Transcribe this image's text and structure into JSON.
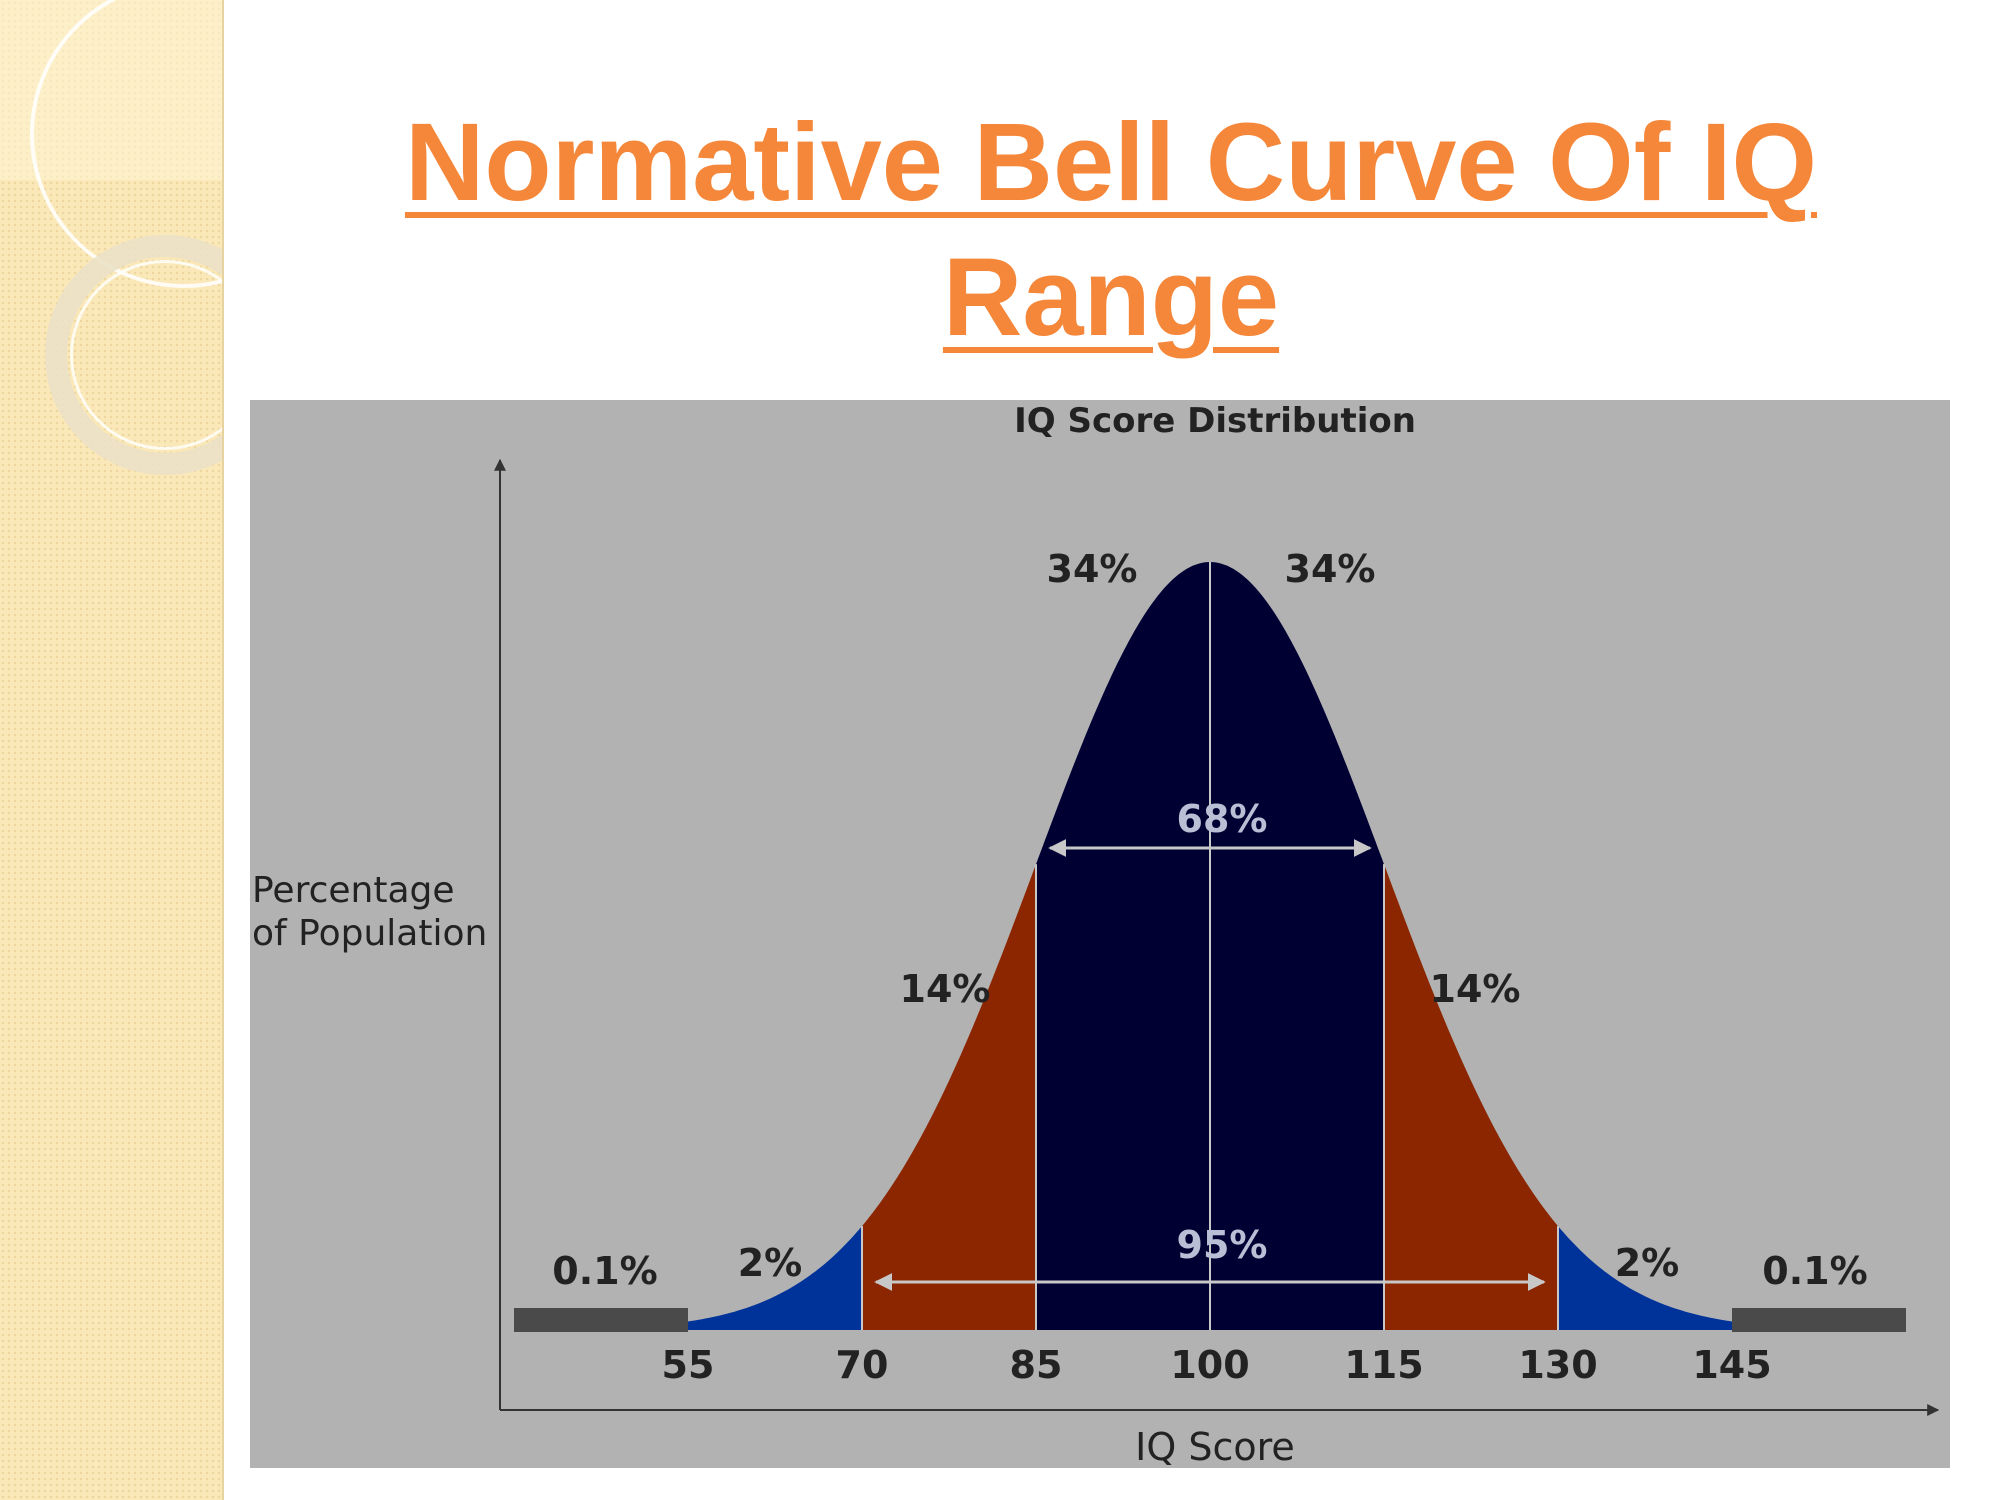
{
  "slide": {
    "title_line1": "Normative Bell Curve Of IQ",
    "title_line2": "Range"
  },
  "chart_data": {
    "type": "area",
    "title": "IQ Score Distribution",
    "xlabel": "IQ Score",
    "ylabel_line1": "Percentage",
    "ylabel_line2": "of Population",
    "x_ticks": [
      "55",
      "70",
      "85",
      "100",
      "115",
      "130",
      "145"
    ],
    "mean": 100,
    "sd": 15,
    "regions": [
      {
        "from": 40,
        "to": 55,
        "label": "0.1%",
        "color": "#4a4a4a"
      },
      {
        "from": 55,
        "to": 70,
        "label": "2%",
        "color": "#003399"
      },
      {
        "from": 70,
        "to": 85,
        "label": "14%",
        "color": "#8b2600"
      },
      {
        "from": 85,
        "to": 100,
        "label": "34%",
        "color": "#000033"
      },
      {
        "from": 100,
        "to": 115,
        "label": "34%",
        "color": "#000033"
      },
      {
        "from": 115,
        "to": 130,
        "label": "14%",
        "color": "#8b2600"
      },
      {
        "from": 130,
        "to": 145,
        "label": "2%",
        "color": "#003399"
      },
      {
        "from": 145,
        "to": 160,
        "label": "0.1%",
        "color": "#4a4a4a"
      }
    ],
    "ranges": [
      {
        "from": 85,
        "to": 115,
        "label": "68%"
      },
      {
        "from": 70,
        "to": 130,
        "label": "95%"
      }
    ],
    "panel_color": "#b2b2b2"
  }
}
